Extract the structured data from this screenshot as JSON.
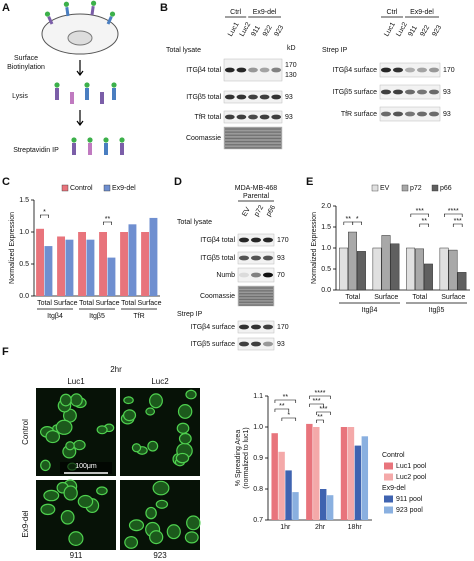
{
  "panel_labels": [
    "A",
    "B",
    "C",
    "D",
    "E",
    "F"
  ],
  "panel_a": {
    "steps": [
      {
        "lines": [
          "Surface",
          "Biotinylation"
        ]
      },
      {
        "lines": [
          "Lysis"
        ]
      },
      {
        "lines": [
          "Streptavidin IP"
        ]
      }
    ]
  },
  "panel_b": {
    "groups": [
      "Ctrl",
      "Ex9-del"
    ],
    "lanes": [
      "Luc1",
      "Luc2",
      "911",
      "922",
      "923"
    ],
    "kd": "kD",
    "left": {
      "title": "Total lysate",
      "rows": [
        {
          "label": "ITGβ4 total",
          "markers": [
            "170",
            "130"
          ]
        },
        {
          "label": "ITGβ5 total",
          "markers": [
            "93"
          ]
        },
        {
          "label": "TfR total",
          "markers": [
            "93"
          ]
        },
        {
          "label": "Coomassie",
          "markers": []
        }
      ]
    },
    "right": {
      "title": "Strep IP",
      "rows": [
        {
          "label": "ITGβ4 surface",
          "markers": [
            "170"
          ]
        },
        {
          "label": "ITGβ5 surface",
          "markers": [
            "93"
          ]
        },
        {
          "label": "TfR surface",
          "markers": [
            "93"
          ]
        }
      ]
    }
  },
  "panel_d": {
    "title_lines": [
      "MDA-MB-468",
      "Parental"
    ],
    "lanes": [
      "EV",
      "p72",
      "p66"
    ],
    "sections": [
      {
        "title": "Total lysate",
        "rows": [
          {
            "label": "ITGβ4 total",
            "markers": [
              "170"
            ]
          },
          {
            "label": "ITGβ5 total",
            "markers": [
              "93"
            ]
          },
          {
            "label": "Numb",
            "markers": [
              "70"
            ]
          },
          {
            "label": "Coomassie",
            "markers": []
          }
        ]
      },
      {
        "title": "Strep IP",
        "rows": [
          {
            "label": "ITGβ4 surface",
            "markers": [
              "170"
            ]
          },
          {
            "label": "ITGβ5 surface",
            "markers": [
              "93"
            ]
          }
        ]
      }
    ]
  },
  "panel_f_images": {
    "time": "2hr",
    "columns": [
      "Luc1",
      "Luc2"
    ],
    "rows": [
      "Control",
      "Ex9-del"
    ],
    "scale_bar": "100μm",
    "clones": [
      "911",
      "923"
    ]
  },
  "chart_data": [
    {
      "type": "bar",
      "ylabel": "Normalized Expression",
      "categories": [
        "Total",
        "Surface",
        "Total",
        "Surface",
        "Total",
        "Surface"
      ],
      "groups": [
        "Itgβ4",
        "Itgβ5",
        "TfR"
      ],
      "series": [
        {
          "name": "Control",
          "color": "#e8747c",
          "values": [
            1.05,
            0.93,
            1.0,
            1.0,
            1.0,
            1.0
          ]
        },
        {
          "name": "Ex9-del",
          "color": "#6f8fd0",
          "values": [
            0.78,
            0.88,
            0.88,
            0.6,
            1.12,
            1.22
          ]
        }
      ],
      "ylim": [
        0,
        1.5
      ],
      "yticks": [
        {
          "value": 0,
          "label": "0.0"
        },
        0.5,
        {
          "value": 1,
          "label": "1.0"
        },
        1.5
      ],
      "legend": "top",
      "annotations": [
        "*",
        "**"
      ]
    },
    {
      "type": "bar",
      "ylabel": "Normalized Expression",
      "categories": [
        "Total",
        "Surface",
        "Total",
        "Surface"
      ],
      "groups": [
        "Itgβ4",
        "Itgβ5"
      ],
      "series": [
        {
          "name": "EV",
          "color": "#e0e0e0",
          "values": [
            1.0,
            1.0,
            1.0,
            1.0
          ]
        },
        {
          "name": "p72",
          "color": "#a8a8a8",
          "values": [
            1.38,
            1.3,
            0.98,
            0.95
          ]
        },
        {
          "name": "p66",
          "color": "#606060",
          "values": [
            0.92,
            1.1,
            0.62,
            0.42
          ]
        }
      ],
      "ylim": [
        0,
        2
      ],
      "yticks": [
        {
          "value": 0,
          "label": "0.0"
        },
        0.5,
        {
          "value": 1,
          "label": "1.0"
        },
        1.5,
        {
          "value": 2,
          "label": "2.0"
        }
      ],
      "legend": "top",
      "annotations": [
        "**",
        "*",
        "***",
        "**",
        "****",
        "***"
      ]
    },
    {
      "type": "bar",
      "ylabel": "% Spreading Area",
      "ylabel_note": "(normalized to luc1)",
      "categories": [
        "1hr",
        "2hr",
        "18hr"
      ],
      "legend_groups": [
        "Control",
        "Ex9-del"
      ],
      "series": [
        {
          "name": "Luc1 pool",
          "color": "#e8747c",
          "values": [
            0.98,
            1.01,
            1.0
          ]
        },
        {
          "name": "Luc2 pool",
          "color": "#f4a9a9",
          "values": [
            0.92,
            1.0,
            1.0
          ]
        },
        {
          "name": "911 pool",
          "color": "#3f63b0",
          "values": [
            0.86,
            0.8,
            0.94
          ]
        },
        {
          "name": "923 pool",
          "color": "#8ab0e0",
          "values": [
            0.79,
            0.78,
            0.97
          ]
        }
      ],
      "ylim": [
        0.7,
        1.1
      ],
      "yticks": [
        0.7,
        0.8,
        0.9,
        {
          "value": 1,
          "label": "1.0"
        },
        1.1
      ],
      "legend": "right",
      "annotations": [
        "**",
        "**",
        "*",
        "****",
        "***",
        "***",
        "**"
      ]
    }
  ]
}
